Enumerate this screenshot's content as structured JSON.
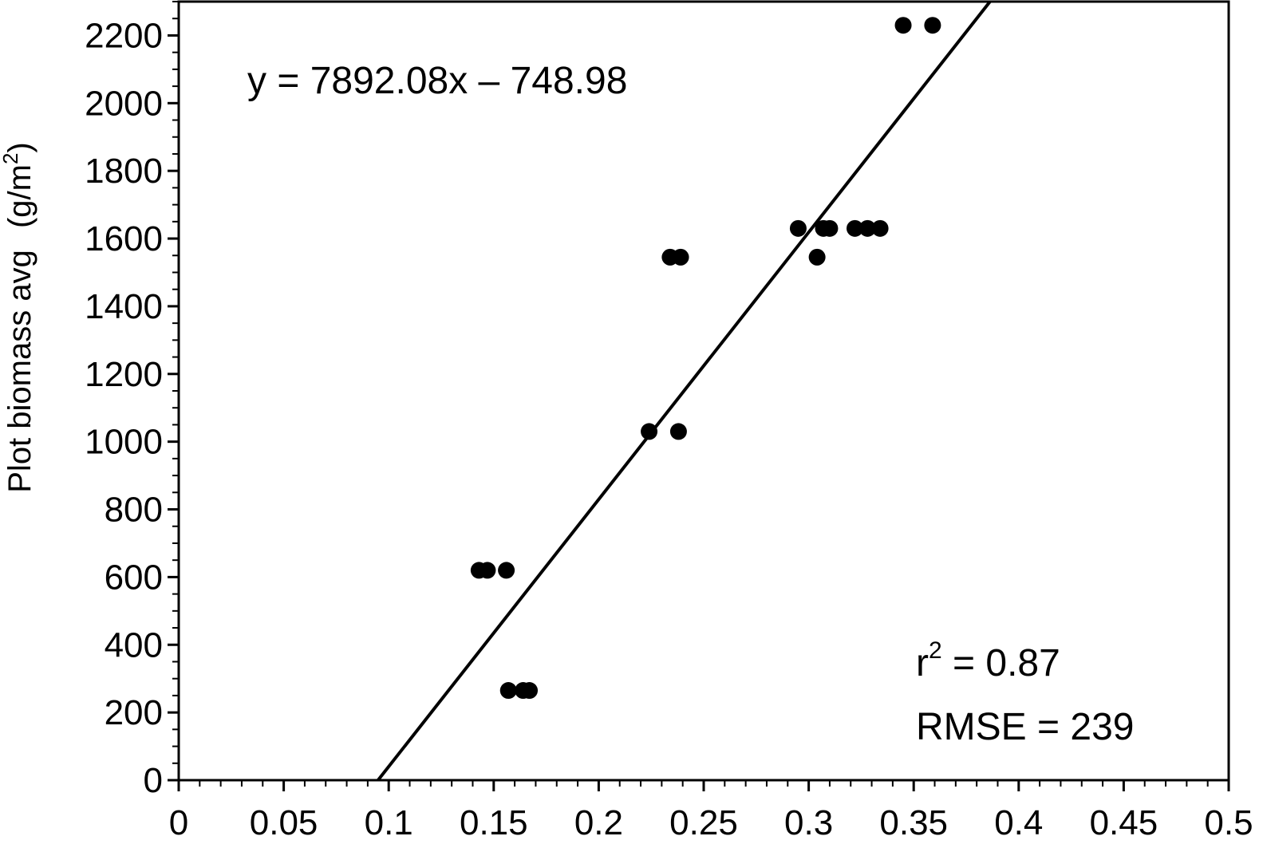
{
  "chart_data": {
    "type": "scatter",
    "title": "",
    "xlabel": "",
    "ylabel": "Plot biomass avg",
    "ylabel_unit_prefix": "(g/m",
    "ylabel_unit_sup": "2",
    "ylabel_unit_suffix": ")",
    "xlim": [
      0,
      0.5
    ],
    "ylim": [
      0,
      2300
    ],
    "x_ticks": [
      0,
      0.05,
      0.1,
      0.15,
      0.2,
      0.25,
      0.3,
      0.35,
      0.4,
      0.45,
      0.5
    ],
    "x_tick_labels": [
      "0",
      "0.05",
      "0.1",
      "0.15",
      "0.2",
      "0.25",
      "0.3",
      "0.35",
      "0.4",
      "0.45",
      "0.5"
    ],
    "y_ticks": [
      0,
      200,
      400,
      600,
      800,
      1000,
      1200,
      1400,
      1600,
      1800,
      2000,
      2200
    ],
    "y_tick_labels": [
      "0",
      "200",
      "400",
      "600",
      "800",
      "1000",
      "1200",
      "1400",
      "1600",
      "1800",
      "2000",
      "2200"
    ],
    "grid": false,
    "legend": "none",
    "marker_color": "#000000",
    "points": [
      {
        "x": 0.143,
        "y": 620
      },
      {
        "x": 0.147,
        "y": 620
      },
      {
        "x": 0.156,
        "y": 620
      },
      {
        "x": 0.157,
        "y": 265
      },
      {
        "x": 0.164,
        "y": 265
      },
      {
        "x": 0.167,
        "y": 265
      },
      {
        "x": 0.224,
        "y": 1030
      },
      {
        "x": 0.238,
        "y": 1030
      },
      {
        "x": 0.234,
        "y": 1545
      },
      {
        "x": 0.239,
        "y": 1545
      },
      {
        "x": 0.295,
        "y": 1630
      },
      {
        "x": 0.304,
        "y": 1545
      },
      {
        "x": 0.307,
        "y": 1630
      },
      {
        "x": 0.31,
        "y": 1630
      },
      {
        "x": 0.322,
        "y": 1630
      },
      {
        "x": 0.328,
        "y": 1630
      },
      {
        "x": 0.334,
        "y": 1630
      },
      {
        "x": 0.345,
        "y": 2230
      },
      {
        "x": 0.359,
        "y": 2230
      }
    ],
    "fit_line": {
      "slope": 7892.08,
      "intercept": -748.98,
      "color": "#000000"
    },
    "annotations": {
      "equation": "y = 7892.08x – 748.98",
      "r2_prefix": "r",
      "r2_sup": "2",
      "r2_value": " = 0.87",
      "rmse": "RMSE =  239"
    }
  }
}
